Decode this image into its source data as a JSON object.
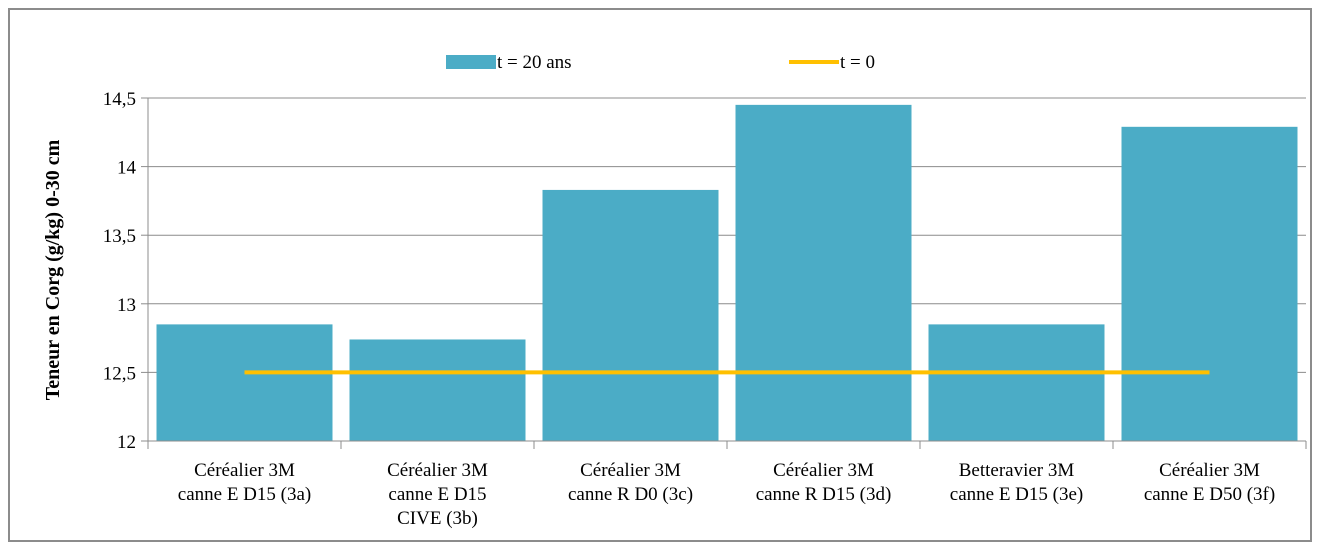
{
  "chart_data": {
    "type": "bar",
    "title": "",
    "xlabel": "",
    "ylabel": "Teneur en Corg (g/kg) 0-30 cm",
    "ylim": [
      12,
      14.5
    ],
    "yticks": [
      "12",
      "12,5",
      "13",
      "13,5",
      "14",
      "14,5"
    ],
    "categories": [
      [
        "Céréalier 3M",
        "canne E D15 (3a)"
      ],
      [
        "Céréalier 3M",
        "canne E D15",
        "CIVE (3b)"
      ],
      [
        "Céréalier 3M",
        "canne R D0 (3c)"
      ],
      [
        "Céréalier 3M",
        "canne R D15 (3d)"
      ],
      [
        "Betteravier 3M",
        "canne E D15 (3e)"
      ],
      [
        "Céréalier 3M",
        "canne E D50 (3f)"
      ]
    ],
    "series": [
      {
        "name": "t = 20 ans",
        "kind": "bar",
        "color": "#4bacc6",
        "values": [
          12.85,
          12.74,
          13.83,
          14.45,
          12.85,
          14.29
        ]
      },
      {
        "name": "t = 0",
        "kind": "line",
        "color": "#ffc000",
        "values": [
          12.5,
          12.5,
          12.5,
          12.5,
          12.5,
          12.5
        ]
      }
    ],
    "grid": true,
    "legend": "top"
  }
}
